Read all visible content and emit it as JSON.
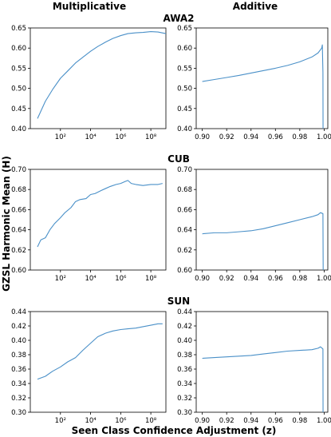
{
  "figure": {
    "column_titles": [
      "Multiplicative",
      "Additive"
    ],
    "ylabel": "GZSL Harmonic Mean (H)",
    "xlabel": "Seen Class Confidence Adjustment (z)",
    "line_color": "#4a90c8"
  },
  "chart_data": [
    {
      "dataset": "AWA2",
      "column": "Multiplicative",
      "type": "line",
      "x_scale": "log",
      "xlim": [
        1,
        1000000000.0
      ],
      "ylim": [
        0.4,
        0.65
      ],
      "xticks": [
        100,
        10000,
        1000000,
        100000000
      ],
      "xtick_labels": [
        "10²",
        "10⁴",
        "10⁶",
        "10⁸"
      ],
      "yticks": [
        0.4,
        0.45,
        0.5,
        0.55,
        0.6,
        0.65
      ],
      "ytick_labels": [
        "0.40",
        "0.45",
        "0.50",
        "0.55",
        "0.60",
        "0.65"
      ],
      "x": [
        3,
        10,
        30,
        100,
        300,
        1000,
        3000,
        10000,
        30000,
        100000,
        300000,
        1000000,
        3000000,
        10000000,
        30000000,
        100000000,
        300000000,
        1000000000
      ],
      "y": [
        0.425,
        0.468,
        0.497,
        0.525,
        0.543,
        0.563,
        0.577,
        0.592,
        0.604,
        0.615,
        0.624,
        0.631,
        0.636,
        0.638,
        0.639,
        0.641,
        0.64,
        0.636
      ]
    },
    {
      "dataset": "AWA2",
      "column": "Additive",
      "type": "line",
      "xlim": [
        0.895,
        1.003
      ],
      "ylim": [
        0.4,
        0.65
      ],
      "xticks": [
        0.9,
        0.92,
        0.94,
        0.96,
        0.98,
        1.0
      ],
      "xtick_labels": [
        "0.90",
        "0.92",
        "0.94",
        "0.96",
        "0.98",
        "1.00"
      ],
      "yticks": [
        0.4,
        0.45,
        0.5,
        0.55,
        0.6,
        0.65
      ],
      "ytick_labels": [
        "0.40",
        "0.45",
        "0.50",
        "0.55",
        "0.60",
        "0.65"
      ],
      "x": [
        0.9,
        0.91,
        0.92,
        0.93,
        0.94,
        0.95,
        0.96,
        0.97,
        0.98,
        0.99,
        0.995,
        0.998,
        0.9985,
        0.999,
        0.9991
      ],
      "y": [
        0.517,
        0.522,
        0.527,
        0.532,
        0.538,
        0.544,
        0.55,
        0.557,
        0.566,
        0.578,
        0.588,
        0.6,
        0.608,
        0.54,
        0.4
      ]
    },
    {
      "dataset": "CUB",
      "column": "Multiplicative",
      "type": "line",
      "x_scale": "log",
      "xlim": [
        1,
        1000000000.0
      ],
      "ylim": [
        0.6,
        0.7
      ],
      "xticks": [
        100,
        10000,
        1000000,
        100000000
      ],
      "xtick_labels": [
        "10²",
        "10⁴",
        "10⁶",
        "10⁸"
      ],
      "yticks": [
        0.6,
        0.62,
        0.64,
        0.66,
        0.68,
        0.7
      ],
      "ytick_labels": [
        "0.60",
        "0.62",
        "0.64",
        "0.66",
        "0.68",
        "0.70"
      ],
      "x": [
        3,
        5,
        10,
        20,
        40,
        100,
        200,
        500,
        1000,
        2000,
        5000,
        10000,
        20000,
        50000,
        100000,
        200000,
        500000,
        1000000,
        2000000,
        3000000,
        5000000,
        10000000,
        30000000,
        100000000,
        300000000,
        600000000
      ],
      "y": [
        0.623,
        0.63,
        0.632,
        0.64,
        0.646,
        0.652,
        0.657,
        0.662,
        0.668,
        0.67,
        0.671,
        0.675,
        0.676,
        0.679,
        0.681,
        0.683,
        0.685,
        0.686,
        0.688,
        0.689,
        0.686,
        0.685,
        0.684,
        0.685,
        0.685,
        0.686
      ]
    },
    {
      "dataset": "CUB",
      "column": "Additive",
      "type": "line",
      "xlim": [
        0.895,
        1.003
      ],
      "ylim": [
        0.6,
        0.7
      ],
      "xticks": [
        0.9,
        0.92,
        0.94,
        0.96,
        0.98,
        1.0
      ],
      "xtick_labels": [
        "0.90",
        "0.92",
        "0.94",
        "0.96",
        "0.98",
        "1.00"
      ],
      "yticks": [
        0.6,
        0.62,
        0.64,
        0.66,
        0.68,
        0.7
      ],
      "ytick_labels": [
        "0.60",
        "0.62",
        "0.64",
        "0.66",
        "0.68",
        "0.70"
      ],
      "x": [
        0.9,
        0.91,
        0.92,
        0.93,
        0.94,
        0.95,
        0.96,
        0.97,
        0.98,
        0.99,
        0.995,
        0.997,
        0.999,
        0.9992
      ],
      "y": [
        0.636,
        0.637,
        0.637,
        0.638,
        0.639,
        0.641,
        0.644,
        0.647,
        0.65,
        0.653,
        0.655,
        0.657,
        0.656,
        0.6
      ]
    },
    {
      "dataset": "SUN",
      "column": "Multiplicative",
      "type": "line",
      "x_scale": "log",
      "xlim": [
        1,
        1000000000.0
      ],
      "ylim": [
        0.3,
        0.44
      ],
      "xticks": [
        100,
        10000,
        1000000,
        100000000
      ],
      "xtick_labels": [
        "10²",
        "10⁴",
        "10⁶",
        "10⁸"
      ],
      "yticks": [
        0.3,
        0.32,
        0.34,
        0.36,
        0.38,
        0.4,
        0.42,
        0.44
      ],
      "ytick_labels": [
        "0.30",
        "0.32",
        "0.34",
        "0.36",
        "0.38",
        "0.40",
        "0.42",
        "0.44"
      ],
      "x": [
        3,
        10,
        30,
        100,
        300,
        1000,
        3000,
        10000,
        30000,
        100000,
        300000,
        1000000,
        3000000,
        10000000,
        30000000,
        100000000,
        300000000,
        600000000
      ],
      "y": [
        0.346,
        0.35,
        0.357,
        0.363,
        0.37,
        0.376,
        0.386,
        0.396,
        0.405,
        0.41,
        0.413,
        0.415,
        0.416,
        0.417,
        0.419,
        0.421,
        0.423,
        0.423
      ]
    },
    {
      "dataset": "SUN",
      "column": "Additive",
      "type": "line",
      "xlim": [
        0.895,
        1.003
      ],
      "ylim": [
        0.3,
        0.44
      ],
      "xticks": [
        0.9,
        0.92,
        0.94,
        0.96,
        0.98,
        1.0
      ],
      "xtick_labels": [
        "0.90",
        "0.92",
        "0.94",
        "0.96",
        "0.98",
        "1.00"
      ],
      "yticks": [
        0.3,
        0.32,
        0.34,
        0.36,
        0.38,
        0.4,
        0.42,
        0.44
      ],
      "ytick_labels": [
        "0.30",
        "0.32",
        "0.34",
        "0.36",
        "0.38",
        "0.40",
        "0.42",
        "0.44"
      ],
      "x": [
        0.9,
        0.91,
        0.92,
        0.93,
        0.94,
        0.95,
        0.96,
        0.97,
        0.98,
        0.99,
        0.995,
        0.997,
        0.999,
        0.9991
      ],
      "y": [
        0.375,
        0.376,
        0.377,
        0.378,
        0.379,
        0.381,
        0.383,
        0.385,
        0.386,
        0.387,
        0.389,
        0.391,
        0.388,
        0.3
      ]
    }
  ]
}
